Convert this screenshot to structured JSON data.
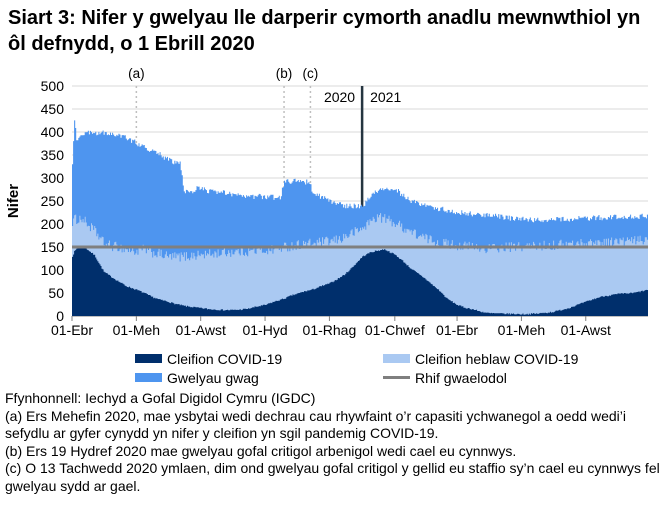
{
  "page": {
    "title": "Siart 3: Nifer y gwelyau lle darperir cymorth anadlu mewnwthiol yn ôl defnydd, o 1 Ebrill 2020"
  },
  "legend": {
    "items": [
      {
        "label": "Cleifion COVID-19",
        "color": "#002f6c",
        "type": "box"
      },
      {
        "label": "Cleifion heblaw COVID-19",
        "color": "#aac9f2",
        "type": "box"
      },
      {
        "label": "Gwelyau gwag",
        "color": "#4e95ef",
        "type": "box"
      },
      {
        "label": "Rhif gwaelodol",
        "color": "#7f7f7f",
        "type": "line"
      }
    ]
  },
  "footnotes": {
    "source": "Ffynhonnell: Iechyd a Gofal Digidol Cymru (IGDC)",
    "a": "(a) Ers Mehefin 2020, mae ysbytai wedi dechrau cau rhywfaint o’r capasiti ychwanegol a oedd wedi’i sefydlu ar gyfer cynydd yn nifer y cleifion yn sgil pandemig COVID-19.",
    "b": "(b) Ers 19 Hydref 2020 mae gwelyau gofal critigol arbenigol wedi cael eu cynnwys.",
    "c": "(c) O 13 Tachwedd 2020 ymlaen, dim ond gwelyau gofal critigol y gellid eu staffio sy’n cael eu cynnwys fel gwelyau sydd ar gael."
  },
  "chart_data": {
    "type": "area",
    "stacked": true,
    "title": "Siart 3: Nifer y gwelyau lle darperir cymorth anadlu mewnwthiol yn ôl defnydd, o 1 Ebrill 2020",
    "xlabel": "",
    "ylabel": "Nifer",
    "ylim": [
      0,
      500
    ],
    "y_ticks": [
      0,
      50,
      100,
      150,
      200,
      250,
      300,
      350,
      400,
      450,
      500
    ],
    "x_range": [
      "2020-04-01",
      "2021-09-29"
    ],
    "x_ticks": [
      {
        "date": "2020-04-01",
        "label": "01-Ebr"
      },
      {
        "date": "2020-06-01",
        "label": "01-Meh"
      },
      {
        "date": "2020-08-01",
        "label": "01-Awst"
      },
      {
        "date": "2020-10-01",
        "label": "01-Hyd"
      },
      {
        "date": "2020-12-01",
        "label": "01-Rhag"
      },
      {
        "date": "2021-02-01",
        "label": "01-Chwef"
      },
      {
        "date": "2021-04-01",
        "label": "01-Ebr"
      },
      {
        "date": "2021-06-01",
        "label": "01-Meh"
      },
      {
        "date": "2021-08-01",
        "label": "01-Awst"
      }
    ],
    "baseline": {
      "value": 150,
      "label": "Rhif gwaelodol",
      "color": "#7f7f7f"
    },
    "annotations": [
      {
        "label": "(a)",
        "date": "2020-06-01"
      },
      {
        "label": "(b)",
        "date": "2020-10-19"
      },
      {
        "label": "(c)",
        "date": "2020-11-13"
      }
    ],
    "year_divider": {
      "date": "2021-01-01",
      "left_label": "2020",
      "right_label": "2021"
    },
    "series_names": [
      "Cleifion COVID-19",
      "Cleifion heblaw COVID-19",
      "Gwelyau gwag"
    ],
    "legend_position": "bottom",
    "grid": "horizontal",
    "colors": {
      "cleifion_covid": "#002f6c",
      "cleifion_heblaw": "#aac9f2",
      "gwelyau_gwag": "#4e95ef",
      "gridline": "#d9d9d9",
      "annotation_line": "#bfbfbf",
      "year_line": "#253540",
      "axis": "#808080"
    },
    "anchors": {
      "dates": [
        "2020-04-01",
        "2020-04-03",
        "2020-04-05",
        "2020-04-10",
        "2020-04-15",
        "2020-04-22",
        "2020-05-01",
        "2020-05-08",
        "2020-05-15",
        "2020-05-22",
        "2020-06-01",
        "2020-06-08",
        "2020-06-15",
        "2020-06-22",
        "2020-07-01",
        "2020-07-08",
        "2020-07-12",
        "2020-07-16",
        "2020-07-22",
        "2020-08-01",
        "2020-08-08",
        "2020-08-15",
        "2020-08-22",
        "2020-09-01",
        "2020-09-08",
        "2020-09-15",
        "2020-09-22",
        "2020-10-01",
        "2020-10-08",
        "2020-10-15",
        "2020-10-19",
        "2020-10-25",
        "2020-11-01",
        "2020-11-08",
        "2020-11-12",
        "2020-11-14",
        "2020-11-22",
        "2020-12-01",
        "2020-12-08",
        "2020-12-15",
        "2020-12-22",
        "2021-01-01",
        "2021-01-08",
        "2021-01-15",
        "2021-01-22",
        "2021-02-01",
        "2021-02-08",
        "2021-02-15",
        "2021-02-22",
        "2021-03-01",
        "2021-03-08",
        "2021-03-15",
        "2021-03-22",
        "2021-04-01",
        "2021-04-08",
        "2021-04-15",
        "2021-04-22",
        "2021-05-01",
        "2021-05-15",
        "2021-06-01",
        "2021-06-15",
        "2021-07-01",
        "2021-07-15",
        "2021-08-01",
        "2021-08-15",
        "2021-09-01",
        "2021-09-15",
        "2021-09-29"
      ],
      "cleifion_covid": [
        130,
        140,
        146,
        152,
        145,
        132,
        96,
        85,
        75,
        65,
        57,
        50,
        42,
        36,
        31,
        26,
        24,
        22,
        20,
        17,
        15,
        14,
        13,
        13,
        14,
        16,
        20,
        24,
        30,
        35,
        38,
        44,
        49,
        54,
        56,
        57,
        64,
        71,
        80,
        90,
        105,
        129,
        138,
        142,
        145,
        133,
        120,
        105,
        93,
        82,
        68,
        55,
        38,
        24,
        18,
        15,
        10,
        6,
        5,
        4,
        5,
        9,
        17,
        31,
        42,
        48,
        50,
        57
      ],
      "cleifion_heblaw": [
        75,
        70,
        64,
        60,
        55,
        53,
        62,
        67,
        75,
        80,
        83,
        95,
        96,
        99,
        98,
        102,
        105,
        107,
        111,
        116,
        119,
        122,
        125,
        127,
        126,
        125,
        122,
        119,
        115,
        113,
        112,
        108,
        106,
        102,
        101,
        100,
        96,
        91,
        85,
        82,
        75,
        61,
        67,
        74,
        67,
        69,
        73,
        80,
        83,
        87,
        97,
        105,
        119,
        130,
        134,
        135,
        138,
        141,
        144,
        147,
        147,
        145,
        139,
        127,
        118,
        114,
        113,
        109
      ],
      "gwelyau_gwag": [
        125,
        218,
        168,
        186,
        198,
        213,
        240,
        244,
        242,
        243,
        236,
        223,
        222,
        217,
        211,
        205,
        201,
        141,
        139,
        148,
        138,
        134,
        130,
        122,
        120,
        120,
        118,
        116,
        113,
        110,
        142,
        140,
        138,
        135,
        133,
        116,
        100,
        88,
        78,
        68,
        60,
        50,
        53,
        56,
        64,
        76,
        69,
        67,
        72,
        71,
        73,
        73,
        73,
        72,
        72,
        72,
        73,
        72,
        65,
        60,
        56,
        55,
        55,
        54,
        54,
        53,
        53,
        52
      ]
    }
  }
}
